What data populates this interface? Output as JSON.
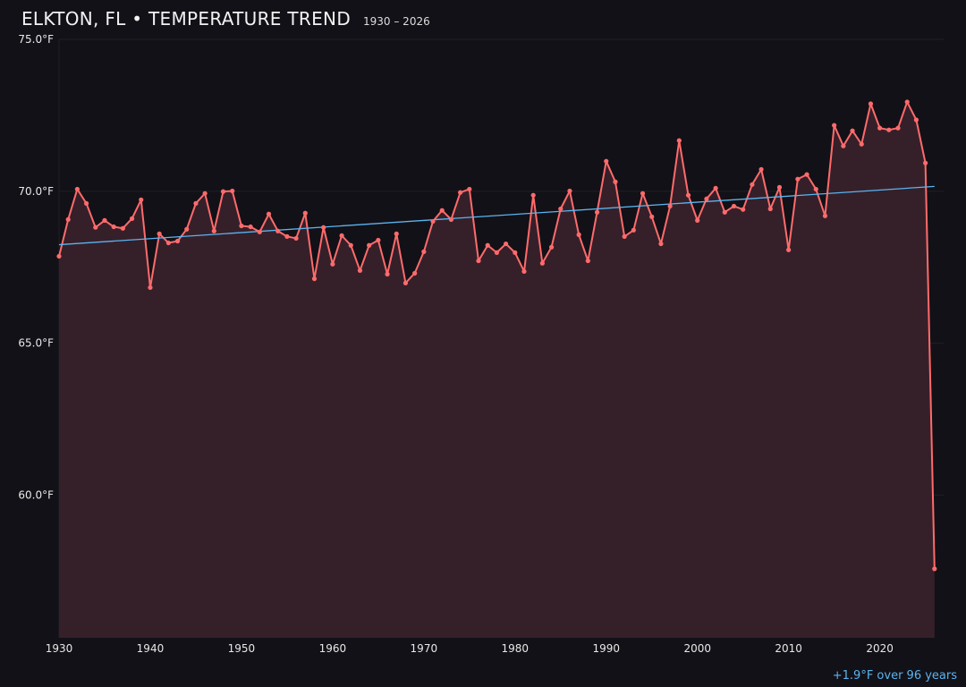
{
  "chart_data": {
    "type": "line",
    "title": "ELKTON, FL • TEMPERATURE TREND",
    "subtitle": "1930 – 2026",
    "annotation": "+1.9°F over 96 years",
    "xlim": [
      1930,
      2027
    ],
    "ylim": [
      55.3,
      75
    ],
    "y_ticks": [
      75,
      70,
      65,
      60
    ],
    "y_tick_labels": [
      "75.0°F",
      "70.0°F",
      "65.0°F",
      "60.0°F"
    ],
    "x_ticks": [
      1930,
      1940,
      1950,
      1960,
      1970,
      1980,
      1990,
      2000,
      2010,
      2020
    ],
    "x_tick_labels": [
      "1930",
      "1940",
      "1950",
      "1960",
      "1970",
      "1980",
      "1990",
      "2000",
      "2010",
      "2020"
    ],
    "grid": true,
    "colors": {
      "series": "#ff6b6b",
      "fill": "#35202a",
      "trend": "#5ab4f0",
      "background": "#121117"
    },
    "x": [
      1930,
      1931,
      1932,
      1933,
      1934,
      1935,
      1936,
      1937,
      1938,
      1939,
      1940,
      1941,
      1942,
      1943,
      1944,
      1945,
      1946,
      1947,
      1948,
      1949,
      1950,
      1951,
      1952,
      1953,
      1954,
      1955,
      1956,
      1957,
      1958,
      1959,
      1960,
      1961,
      1962,
      1963,
      1964,
      1965,
      1966,
      1967,
      1968,
      1969,
      1970,
      1971,
      1972,
      1973,
      1974,
      1975,
      1976,
      1977,
      1978,
      1979,
      1980,
      1981,
      1982,
      1983,
      1984,
      1985,
      1986,
      1987,
      1988,
      1989,
      1990,
      1991,
      1992,
      1993,
      1994,
      1995,
      1996,
      1997,
      1998,
      1999,
      2000,
      2001,
      2002,
      2003,
      2004,
      2005,
      2006,
      2007,
      2008,
      2009,
      2010,
      2011,
      2012,
      2013,
      2014,
      2015,
      2016,
      2017,
      2018,
      2019,
      2020,
      2021,
      2022,
      2023,
      2024,
      2025,
      2026
    ],
    "series": [
      {
        "values": [
          67.86,
          69.07,
          70.07,
          69.6,
          68.81,
          69.04,
          68.83,
          68.78,
          69.1,
          69.72,
          66.83,
          68.6,
          68.3,
          68.36,
          68.75,
          69.6,
          69.93,
          68.69,
          69.99,
          70.01,
          68.86,
          68.83,
          68.66,
          69.25,
          68.69,
          68.51,
          68.45,
          69.28,
          67.12,
          68.81,
          67.6,
          68.54,
          68.22,
          67.39,
          68.22,
          68.39,
          67.27,
          68.6,
          66.98,
          67.3,
          68.01,
          69.01,
          69.37,
          69.07,
          69.96,
          70.07,
          67.71,
          68.22,
          67.98,
          68.27,
          67.98,
          67.36,
          69.87,
          67.63,
          68.16,
          69.42,
          70.01,
          68.57,
          67.71,
          69.31,
          70.99,
          70.31,
          68.51,
          68.72,
          69.93,
          69.16,
          68.27,
          69.51,
          71.67,
          69.87,
          69.04,
          69.75,
          70.1,
          69.31,
          69.51,
          69.4,
          70.22,
          70.72,
          69.42,
          70.13,
          68.07,
          70.4,
          70.55,
          70.07,
          69.19,
          72.17,
          71.49,
          71.99,
          71.55,
          72.88,
          72.08,
          72.02,
          72.08,
          72.94,
          72.35,
          70.93,
          57.57
        ]
      }
    ],
    "trend": {
      "x": [
        1930,
        2026
      ],
      "y": [
        68.24,
        70.16
      ]
    }
  }
}
